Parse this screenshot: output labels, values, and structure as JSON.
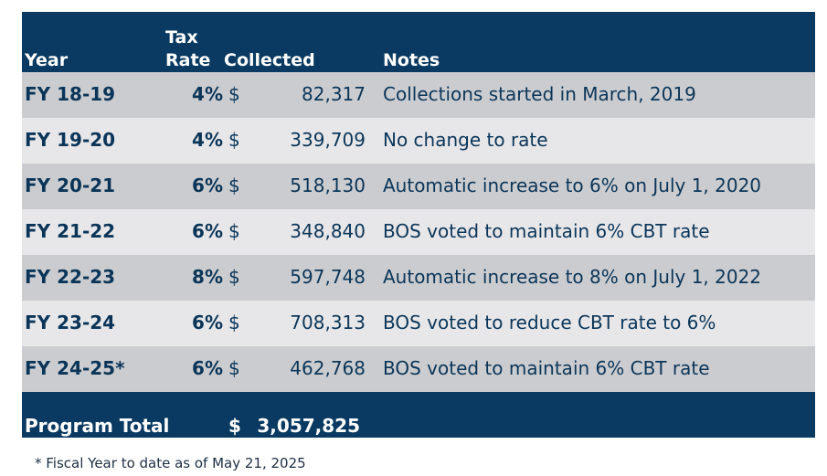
{
  "header": {
    "year": "Year",
    "tax_rate_line1": "Tax",
    "tax_rate_line2": "Rate",
    "collected": "Collected",
    "notes": "Notes"
  },
  "rows": [
    {
      "year": "FY 18-19",
      "rate": "4%",
      "currency": "$",
      "amount": "82,317",
      "note": "Collections started in March, 2019"
    },
    {
      "year": "FY 19-20",
      "rate": "4%",
      "currency": "$",
      "amount": "339,709",
      "note": "No change to rate"
    },
    {
      "year": "FY 20-21",
      "rate": "6%",
      "currency": "$",
      "amount": "518,130",
      "note": "Automatic increase to 6% on July 1, 2020"
    },
    {
      "year": "FY 21-22",
      "rate": "6%",
      "currency": "$",
      "amount": "348,840",
      "note": "BOS voted to maintain 6% CBT rate"
    },
    {
      "year": "FY 22-23",
      "rate": "8%",
      "currency": "$",
      "amount": "597,748",
      "note": "Automatic increase to 8% on July 1, 2022"
    },
    {
      "year": "FY 23-24",
      "rate": "6%",
      "currency": "$",
      "amount": "708,313",
      "note": "BOS voted to reduce CBT rate to 6%"
    },
    {
      "year": "FY 24-25*",
      "rate": "6%",
      "currency": "$",
      "amount": "462,768",
      "note": "BOS voted to maintain 6% CBT rate"
    }
  ],
  "total": {
    "label": "Program Total",
    "currency": "$",
    "amount": "3,057,825"
  },
  "footnote": "* Fiscal Year to date as of May 21, 2025",
  "colors": {
    "header_bg": "#0a3a61",
    "row_odd": "#cbcccf",
    "row_even": "#e7e7e9",
    "text": "#0b3558"
  }
}
